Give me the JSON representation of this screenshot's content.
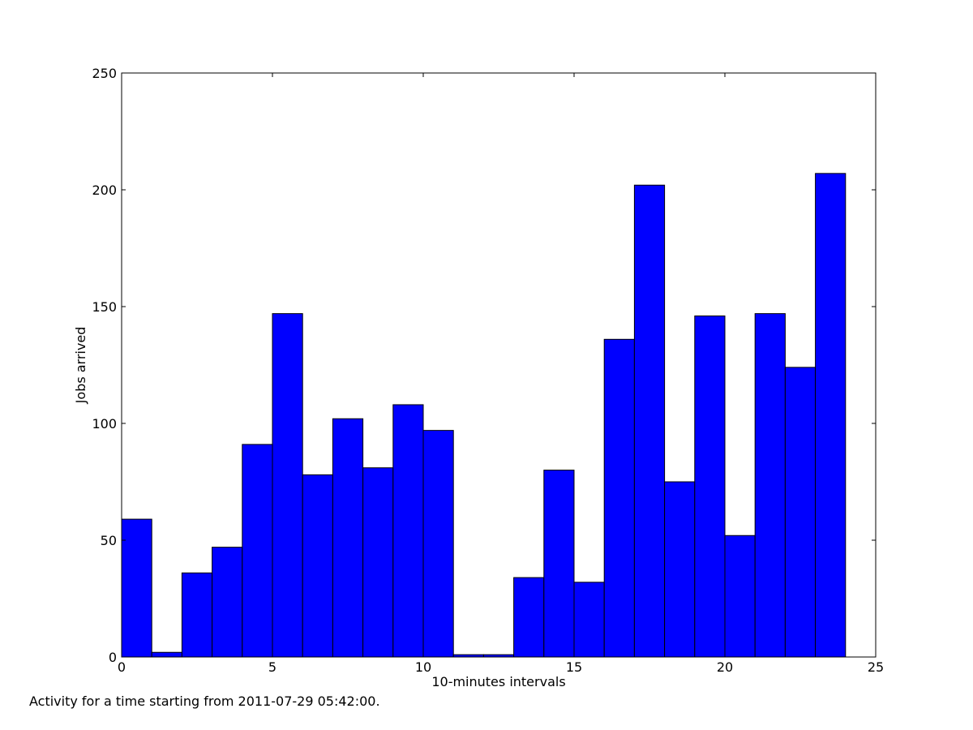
{
  "chart_data": {
    "type": "bar",
    "bins": [
      {
        "x0": 0,
        "x1": 1,
        "value": 59
      },
      {
        "x0": 1,
        "x1": 2,
        "value": 2
      },
      {
        "x0": 2,
        "x1": 3,
        "value": 36
      },
      {
        "x0": 3,
        "x1": 4,
        "value": 47
      },
      {
        "x0": 4,
        "x1": 5,
        "value": 91
      },
      {
        "x0": 5,
        "x1": 6,
        "value": 147
      },
      {
        "x0": 6,
        "x1": 7,
        "value": 78
      },
      {
        "x0": 7,
        "x1": 8,
        "value": 102
      },
      {
        "x0": 8,
        "x1": 9,
        "value": 81
      },
      {
        "x0": 9,
        "x1": 10,
        "value": 108
      },
      {
        "x0": 10,
        "x1": 11,
        "value": 97
      },
      {
        "x0": 11,
        "x1": 12,
        "value": 1
      },
      {
        "x0": 12,
        "x1": 13,
        "value": 1
      },
      {
        "x0": 13,
        "x1": 14,
        "value": 34
      },
      {
        "x0": 14,
        "x1": 15,
        "value": 80
      },
      {
        "x0": 15,
        "x1": 16,
        "value": 32
      },
      {
        "x0": 16,
        "x1": 17,
        "value": 136
      },
      {
        "x0": 17,
        "x1": 18,
        "value": 202
      },
      {
        "x0": 18,
        "x1": 19,
        "value": 75
      },
      {
        "x0": 19,
        "x1": 20,
        "value": 146
      },
      {
        "x0": 20,
        "x1": 21,
        "value": 52
      },
      {
        "x0": 21,
        "x1": 22,
        "value": 147
      },
      {
        "x0": 22,
        "x1": 23,
        "value": 124
      },
      {
        "x0": 23,
        "x1": 24,
        "value": 207
      }
    ],
    "xlabel": "10-minutes intervals",
    "ylabel": "Jobs arrived",
    "xlim": [
      0,
      25
    ],
    "ylim": [
      0,
      250
    ],
    "xticks": [
      0,
      5,
      10,
      15,
      20,
      25
    ],
    "yticks": [
      0,
      50,
      100,
      150,
      200,
      250
    ],
    "grid": false,
    "bar_color": "#0000ff",
    "edge_color": "#000000"
  },
  "caption": "Activity for a time starting from 2011-07-29 05:42:00."
}
